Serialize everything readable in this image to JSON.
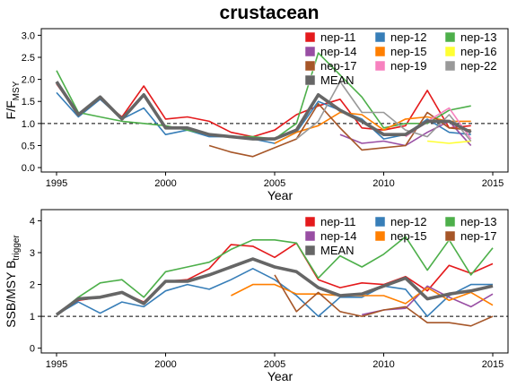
{
  "title": "crustacean",
  "chart_data": [
    {
      "type": "line",
      "panel": "top",
      "xlabel": "Year",
      "ylabel": "F/F",
      "ylabel_sub": "MSY",
      "xlim": [
        1994.3,
        2015.7
      ],
      "ylim": [
        -0.1,
        3.15
      ],
      "xticks": [
        "1995",
        "2000",
        "2005",
        "2010",
        "2015"
      ],
      "yticks": [
        "0.0",
        "0.5",
        "1.0",
        "1.5",
        "2.0",
        "2.5",
        "3.0"
      ],
      "ref_line": 1.0,
      "legend_columns": 3,
      "series": [
        {
          "name": "nep-11",
          "color": "#e41a1c",
          "x": [
            1995,
            1996,
            1997,
            1998,
            1999,
            2000,
            2001,
            2002,
            2003,
            2004,
            2005,
            2006,
            2007,
            2008,
            2009,
            2010,
            2011,
            2012,
            2013,
            2014
          ],
          "values": [
            1.9,
            1.2,
            1.55,
            1.15,
            1.85,
            1.1,
            1.15,
            1.05,
            0.8,
            0.7,
            0.85,
            1.2,
            1.4,
            1.55,
            0.9,
            0.85,
            0.95,
            1.75,
            0.9,
            0.95
          ]
        },
        {
          "name": "nep-12",
          "color": "#377eb8",
          "x": [
            1995,
            1996,
            1997,
            1998,
            1999,
            2000,
            2001,
            2002,
            2003,
            2004,
            2005,
            2006,
            2007,
            2008,
            2009,
            2010,
            2011,
            2012,
            2013,
            2014
          ],
          "values": [
            1.7,
            1.15,
            1.55,
            1.1,
            1.35,
            0.75,
            0.85,
            0.7,
            0.7,
            0.65,
            0.55,
            0.8,
            1.5,
            1.3,
            1.1,
            0.65,
            0.75,
            1.1,
            0.8,
            0.75
          ]
        },
        {
          "name": "nep-13",
          "color": "#4daf4a",
          "x": [
            1995,
            1996,
            1997,
            1998,
            1999,
            2000,
            2001,
            2002,
            2003,
            2004,
            2005,
            2006,
            2007,
            2008,
            2009,
            2010,
            2011,
            2012,
            2013,
            2014
          ],
          "values": [
            2.2,
            1.25,
            1.15,
            1.05,
            1.0,
            0.95,
            0.85,
            0.75,
            0.7,
            0.7,
            0.65,
            1.0,
            2.6,
            2.1,
            1.6,
            0.9,
            1.0,
            1.0,
            1.3,
            1.4
          ]
        },
        {
          "name": "nep-14",
          "color": "#984ea3",
          "x": [
            2008,
            2009,
            2010,
            2011,
            2012,
            2013,
            2014
          ],
          "values": [
            0.75,
            0.55,
            0.6,
            0.5,
            0.8,
            1.05,
            0.5
          ]
        },
        {
          "name": "nep-15",
          "color": "#ff7f00",
          "x": [
            2005,
            2006,
            2007,
            2008,
            2009,
            2010,
            2011,
            2012,
            2013,
            2014
          ],
          "values": [
            0.55,
            0.8,
            0.95,
            1.25,
            1.2,
            0.85,
            1.1,
            1.15,
            1.05,
            1.05
          ]
        },
        {
          "name": "nep-16",
          "color": "#ffff33",
          "x": [
            2012,
            2013,
            2014
          ],
          "values": [
            0.6,
            0.55,
            0.6
          ]
        },
        {
          "name": "nep-17",
          "color": "#a65628",
          "x": [
            2002,
            2003,
            2004,
            2005,
            2006,
            2007,
            2008,
            2009,
            2010,
            2011,
            2012,
            2013,
            2014
          ],
          "values": [
            0.5,
            0.35,
            0.25,
            0.45,
            0.65,
            1.45,
            0.9,
            0.4,
            0.45,
            0.5,
            1.25,
            0.9,
            0.85
          ]
        },
        {
          "name": "nep-19",
          "color": "#f781bf",
          "x": [
            2011,
            2012,
            2013,
            2014
          ],
          "values": [
            0.7,
            1.05,
            1.35,
            0.65
          ]
        },
        {
          "name": "nep-22",
          "color": "#999999",
          "x": [
            2006,
            2007,
            2008,
            2009,
            2010,
            2011,
            2012,
            2013,
            2014
          ],
          "values": [
            0.65,
            1.05,
            1.95,
            1.25,
            1.25,
            0.85,
            0.7,
            1.2,
            0.6
          ]
        },
        {
          "name": "MEAN",
          "color": "#666666",
          "mean": true,
          "x": [
            1995,
            1996,
            1997,
            1998,
            1999,
            2000,
            2001,
            2002,
            2003,
            2004,
            2005,
            2006,
            2007,
            2008,
            2009,
            2010,
            2011,
            2012,
            2013,
            2014
          ],
          "values": [
            1.95,
            1.2,
            1.6,
            1.1,
            1.65,
            0.9,
            0.9,
            0.75,
            0.7,
            0.65,
            0.65,
            0.85,
            1.65,
            1.3,
            1.05,
            0.75,
            0.75,
            1.05,
            1.05,
            0.8
          ]
        }
      ]
    },
    {
      "type": "line",
      "panel": "bottom",
      "xlabel": "Year",
      "ylabel": "SSB/MSY B",
      "ylabel_sub": "trigger",
      "xlim": [
        1994.3,
        2015.7
      ],
      "ylim": [
        -0.15,
        4.35
      ],
      "xticks": [
        "1995",
        "2000",
        "2005",
        "2010",
        "2015"
      ],
      "yticks": [
        "0",
        "1",
        "2",
        "3",
        "4"
      ],
      "ref_line": 1.0,
      "legend_columns": 3,
      "series": [
        {
          "name": "nep-11",
          "color": "#e41a1c",
          "x": [
            1995,
            1996,
            1997,
            1998,
            1999,
            2000,
            2001,
            2002,
            2003,
            2004,
            2005,
            2006,
            2007,
            2008,
            2009,
            2010,
            2011,
            2012,
            2013,
            2014,
            2015
          ],
          "values": [
            1.05,
            1.5,
            1.6,
            1.75,
            1.45,
            2.1,
            2.15,
            2.5,
            3.25,
            3.2,
            2.85,
            3.3,
            2.15,
            1.9,
            2.05,
            2.0,
            2.25,
            1.8,
            2.6,
            2.35,
            2.65
          ]
        },
        {
          "name": "nep-12",
          "color": "#377eb8",
          "x": [
            1995,
            1996,
            1997,
            1998,
            1999,
            2000,
            2001,
            2002,
            2003,
            2004,
            2005,
            2006,
            2007,
            2008,
            2009,
            2010,
            2011,
            2012,
            2013,
            2014,
            2015
          ],
          "values": [
            1.05,
            1.45,
            1.1,
            1.45,
            1.3,
            1.8,
            2.0,
            1.85,
            2.15,
            2.5,
            2.15,
            1.65,
            1.0,
            1.6,
            1.6,
            1.95,
            1.85,
            1.0,
            1.65,
            2.0,
            2.0
          ]
        },
        {
          "name": "nep-13",
          "color": "#4daf4a",
          "x": [
            1995,
            1996,
            1997,
            1998,
            1999,
            2000,
            2001,
            2002,
            2003,
            2004,
            2005,
            2006,
            2007,
            2008,
            2009,
            2010,
            2011,
            2012,
            2013,
            2014,
            2015
          ],
          "values": [
            1.05,
            1.6,
            2.05,
            2.15,
            1.6,
            2.4,
            2.55,
            2.7,
            3.1,
            3.4,
            3.4,
            3.3,
            2.2,
            2.9,
            2.55,
            2.95,
            3.5,
            2.45,
            3.4,
            2.3,
            3.15
          ]
        },
        {
          "name": "nep-14",
          "color": "#984ea3",
          "x": [
            2009,
            2010,
            2011,
            2012,
            2013,
            2014,
            2015
          ],
          "values": [
            1.05,
            1.2,
            1.25,
            1.95,
            1.6,
            1.3,
            1.7
          ]
        },
        {
          "name": "nep-15",
          "color": "#ff7f00",
          "x": [
            2003,
            2004,
            2005,
            2006,
            2007,
            2008,
            2009,
            2010,
            2011,
            2012,
            2013,
            2014,
            2015
          ],
          "values": [
            1.65,
            2.0,
            2.0,
            1.7,
            1.7,
            1.65,
            1.65,
            1.65,
            1.4,
            1.9,
            1.5,
            1.75,
            1.35
          ]
        },
        {
          "name": "nep-17",
          "color": "#a65628",
          "x": [
            2005,
            2006,
            2007,
            2008,
            2009,
            2010,
            2011,
            2012,
            2013,
            2014,
            2015
          ],
          "values": [
            2.3,
            1.15,
            1.75,
            1.15,
            1.0,
            1.2,
            1.3,
            0.8,
            0.8,
            0.7,
            1.0
          ]
        },
        {
          "name": "MEAN",
          "color": "#666666",
          "mean": true,
          "x": [
            1995,
            1996,
            1997,
            1998,
            1999,
            2000,
            2001,
            2002,
            2003,
            2004,
            2005,
            2006,
            2007,
            2008,
            2009,
            2010,
            2011,
            2012,
            2013,
            2014,
            2015
          ],
          "values": [
            1.05,
            1.55,
            1.6,
            1.75,
            1.4,
            2.1,
            2.1,
            2.3,
            2.55,
            2.8,
            2.55,
            2.4,
            1.9,
            1.65,
            1.7,
            1.95,
            2.2,
            1.55,
            1.7,
            1.8,
            1.95
          ]
        }
      ]
    }
  ]
}
